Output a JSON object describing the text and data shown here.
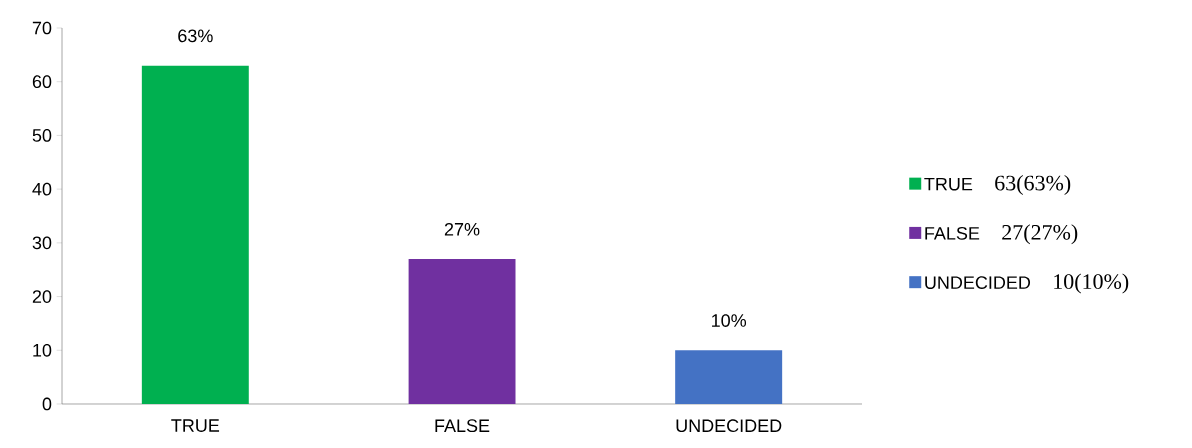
{
  "chart_data": {
    "type": "bar",
    "categories": [
      "TRUE",
      "FALSE",
      "UNDECIDED"
    ],
    "series": [
      {
        "name": "TRUE",
        "color": "#00b050",
        "values": [
          63,
          null,
          null
        ],
        "value_labels": [
          "63%",
          null,
          null
        ]
      },
      {
        "name": "FALSE",
        "color": "#7030a0",
        "values": [
          null,
          27,
          null
        ],
        "value_labels": [
          null,
          "27%",
          null
        ]
      },
      {
        "name": "UNDECIDED",
        "color": "#4472c4",
        "values": [
          null,
          null,
          10
        ],
        "value_labels": [
          null,
          null,
          "10%"
        ]
      }
    ],
    "ylim": [
      0,
      70
    ],
    "yticks": [
      0,
      10,
      20,
      30,
      40,
      50,
      60,
      70
    ],
    "grid": false,
    "legend": "right",
    "annotations": [
      "63(63%)",
      "27(27%)",
      "10(10%)"
    ]
  }
}
